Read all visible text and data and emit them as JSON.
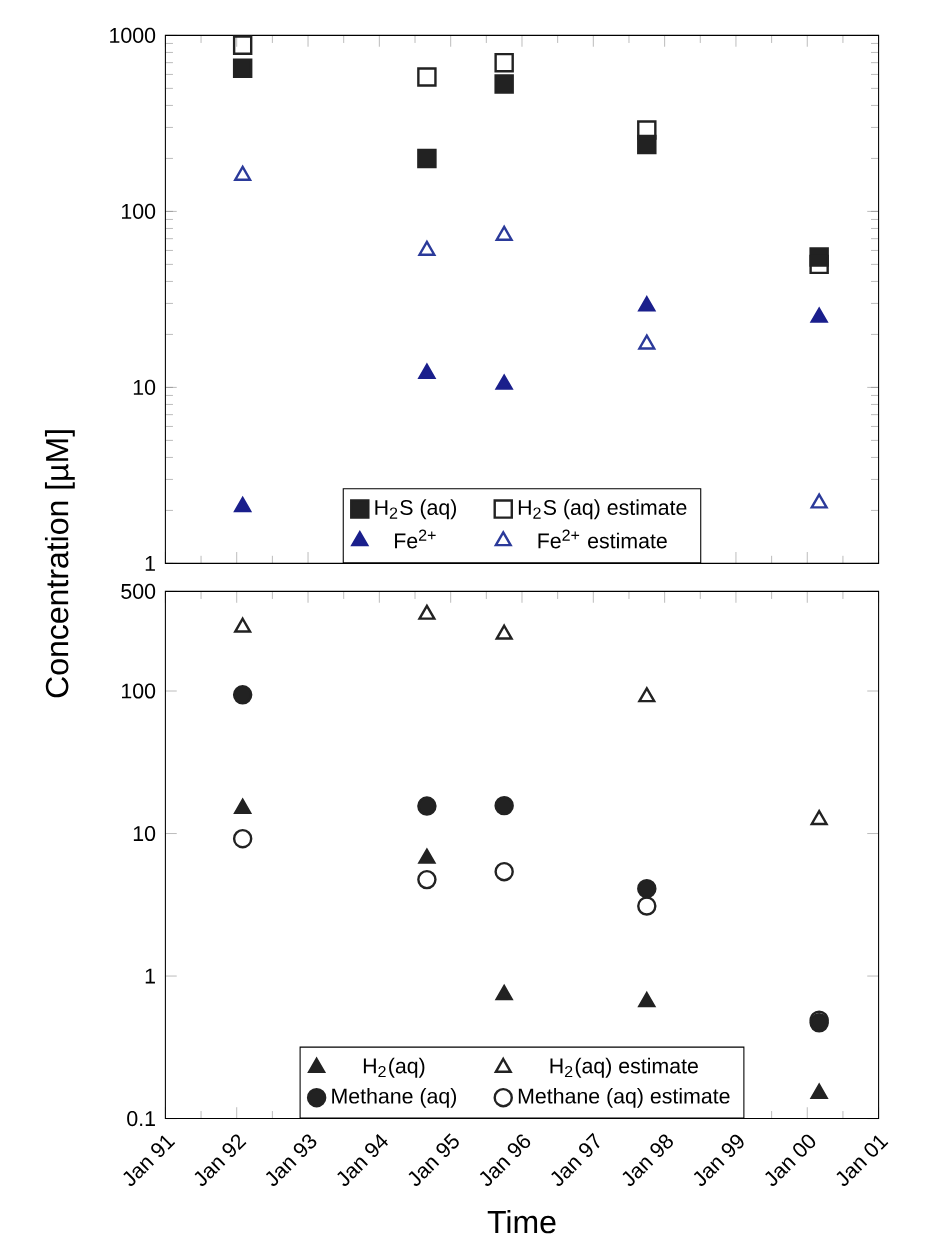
{
  "chart_data": [
    {
      "type": "scatter",
      "ylabel": "Concentration [µM]",
      "log": "y",
      "legend": "bottom",
      "tick_labels": "y",
      "xlim": [
        "1991-01",
        "2001-01"
      ],
      "xticks": [
        {
          "value": "1991-01",
          "label": null
        },
        {
          "value": "1992-01",
          "label": null
        },
        {
          "value": "1993-01",
          "label": null
        },
        {
          "value": "1994-01",
          "label": null
        },
        {
          "value": "1995-01",
          "label": null
        },
        {
          "value": "1996-01",
          "label": null
        },
        {
          "value": "1997-01",
          "label": null
        },
        {
          "value": "1998-01",
          "label": null
        },
        {
          "value": "1999-01",
          "label": null
        },
        {
          "value": "2000-01",
          "label": null
        },
        {
          "value": "2001-01",
          "label": null
        }
      ],
      "ylim": [
        1,
        1000
      ],
      "yticks": [
        1,
        10,
        100,
        1000
      ],
      "x": [
        "1992-02",
        "1994-09",
        "1995-10",
        "1997-10",
        "2000-03"
      ],
      "series": [
        {
          "name": "H$_{2}$S (aq)",
          "color": "#222222",
          "marker": "square",
          "values": [
            650,
            200,
            530,
            240,
            55
          ]
        },
        {
          "name": "H$_{2}$S (aq) estimate",
          "color": "#222222",
          "marker": "square-open",
          "values": [
            880,
            580,
            700,
            290,
            50
          ]
        },
        {
          "name": "Fe$^{2+}$",
          "color": "#1a1f8c",
          "marker": "triangle-down",
          "values": [
            2.1,
            12,
            10.4,
            29,
            25
          ]
        },
        {
          "name": "Fe$^{2+}$ estimate",
          "color": "#2b3a9a",
          "marker": "triangle-open",
          "values": [
            160,
            60,
            73,
            17.6,
            2.2
          ]
        }
      ]
    },
    {
      "type": "scatter",
      "xlabel": "Time",
      "log": "y",
      "legend": "bottom",
      "xlim": [
        "1991-01",
        "2001-01"
      ],
      "xticks": [
        {
          "value": "1991-01",
          "label": "Jan 91"
        },
        {
          "value": "1992-01",
          "label": "Jan 92"
        },
        {
          "value": "1993-01",
          "label": "Jan 93"
        },
        {
          "value": "1994-01",
          "label": "Jan 94"
        },
        {
          "value": "1995-01",
          "label": "Jan 95"
        },
        {
          "value": "1996-01",
          "label": "Jan 96"
        },
        {
          "value": "1997-01",
          "label": "Jan 97"
        },
        {
          "value": "1998-01",
          "label": "Jan 98"
        },
        {
          "value": "1999-01",
          "label": "Jan 99"
        },
        {
          "value": "2000-01",
          "label": "Jan 00"
        },
        {
          "value": "2001-01",
          "label": "Jan 01"
        }
      ],
      "ylim": [
        0.1,
        500
      ],
      "yticks": [
        0.1,
        1,
        10,
        100,
        500
      ],
      "x": [
        "1992-02",
        "1994-09",
        "1995-10",
        "1997-10",
        "2000-03"
      ],
      "series": [
        {
          "name": "H$_{2}$(aq)",
          "color": "#222222",
          "marker": "triangle-left",
          "values": [
            15,
            6.7,
            0.74,
            0.66,
            0.15
          ]
        },
        {
          "name": "H$_{2}$(aq) estimate",
          "color": "#222222",
          "marker": "triangle-right-open",
          "values": [
            280,
            345,
            250,
            91,
            12.5
          ]
        },
        {
          "name": "Methane (aq)",
          "color": "#222222",
          "marker": "circle",
          "values": [
            94,
            15.6,
            15.7,
            4.1,
            0.47
          ]
        },
        {
          "name": "Methane (aq) estimate",
          "color": "#222222",
          "marker": "circle-open",
          "values": [
            9.2,
            4.75,
            5.4,
            3.1,
            0.49
          ]
        }
      ]
    }
  ]
}
